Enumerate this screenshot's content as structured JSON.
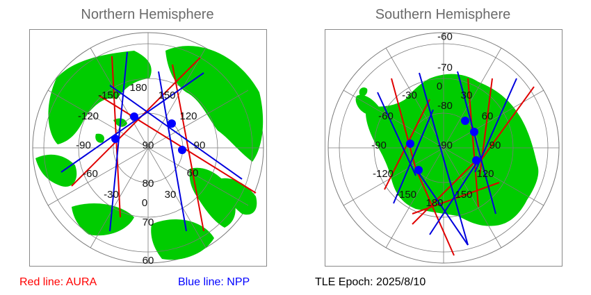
{
  "north": {
    "title": "Northern Hemisphere",
    "longitude_labels": [
      "180",
      "-150",
      "150",
      "-120",
      "120",
      "-90",
      "90",
      "-60",
      "60",
      "-30",
      "30",
      "0"
    ],
    "latitude_labels": [
      "90",
      "80",
      "70",
      "60"
    ]
  },
  "south": {
    "title": "Southern Hemisphere",
    "longitude_labels": [
      "0",
      "-30",
      "30",
      "-60",
      "60",
      "-90",
      "90",
      "-120",
      "120",
      "-150",
      "150",
      "180"
    ],
    "latitude_labels": [
      "-60",
      "-70",
      "-80",
      "-90"
    ]
  },
  "legend": {
    "aura": "Red line: AURA",
    "npp": "Blue line: NPP",
    "epoch": "TLE Epoch: 2025/8/10"
  },
  "colors": {
    "land": "#00cc00",
    "aura_track": "#e00000",
    "npp_track": "#0000dd",
    "crossing_marker": "#0000ff",
    "grid": "#7a7a7a"
  }
}
